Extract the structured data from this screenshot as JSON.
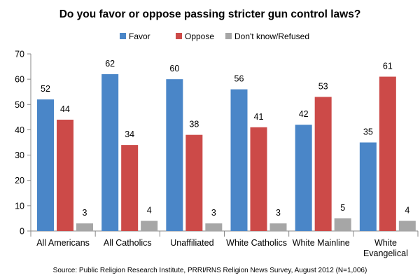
{
  "chart_data": {
    "type": "bar",
    "title": "Do you favor or oppose passing stricter gun control laws?",
    "xlabel": "",
    "ylabel": "",
    "ylim": [
      0,
      70
    ],
    "yticks": [
      "0",
      "10",
      "20",
      "30",
      "40",
      "50",
      "60",
      "70"
    ],
    "legend_position": "top",
    "categories": [
      [
        "All Americans"
      ],
      [
        "All Catholics"
      ],
      [
        "Unaffiliated"
      ],
      [
        "White Catholics"
      ],
      [
        "White Mainline"
      ],
      [
        "White",
        "Evangelical"
      ]
    ],
    "series": [
      {
        "name": "Favor",
        "color": "#4a86c8",
        "values": [
          52,
          62,
          60,
          56,
          42,
          35
        ]
      },
      {
        "name": "Oppose",
        "color": "#cc4a48",
        "values": [
          44,
          34,
          38,
          41,
          53,
          61
        ]
      },
      {
        "name": "Don't know/Refused",
        "color": "#a6a6a6",
        "values": [
          3,
          4,
          3,
          3,
          5,
          4
        ]
      }
    ],
    "source": "Source: Public Religion Research Institute, PRRI/RNS Religion News Survey, August 2012 (N=1,006)"
  }
}
